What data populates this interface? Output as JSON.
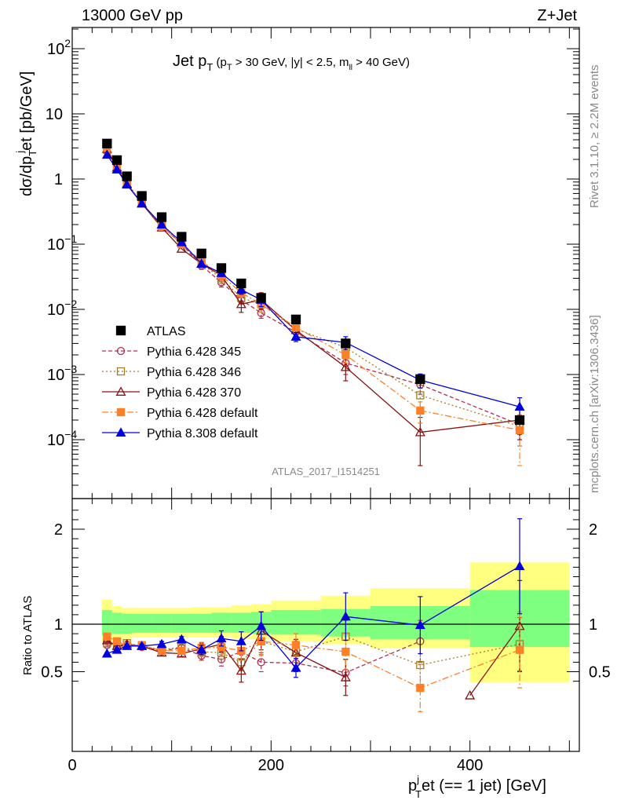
{
  "header": {
    "left": "13000 GeV pp",
    "right": "Z+Jet"
  },
  "side": {
    "rivet": "Rivet 3.1.10, ≥ 2.2M events",
    "mcplots": "mcplots.cern.ch [arXiv:1306.3436]"
  },
  "title_html": {
    "main": "Jet p",
    "sub1": "T",
    "rest_open": " (p",
    "sub2": "T",
    "rest": " > 30 GeV, |y| < 2.5, m",
    "sub3": "ll",
    "rest_close": " > 40 GeV)"
  },
  "watermark": "ATLAS_2017_I1514251",
  "ylabel_top": {
    "a": "dσ/dp",
    "sub": "T",
    "sup": "j",
    "b": "et [pb/GeV]"
  },
  "ylabel_bottom": "Ratio to ATLAS",
  "xlabel": {
    "a": "p",
    "sup": "j",
    "sub": "T",
    "b": "et (== 1 jet) [GeV]"
  },
  "colors": {
    "atlas": "#000000",
    "p345": "#b03050",
    "p346": "#a67c20",
    "p370": "#8b1010",
    "p6def": "#ff7f27",
    "p8def": "#0000dd",
    "band_inner": "#7fff7f",
    "band_outer": "#ffff80"
  },
  "chart_data": [
    {
      "type": "scatter",
      "scale": "log",
      "xlim": [
        0,
        510
      ],
      "ylim": [
        1e-05,
        200
      ],
      "yticks": [
        "10^-4",
        "10^-3",
        "10^-2",
        "10^-1",
        "1",
        "10",
        "10^2"
      ],
      "series": [
        {
          "name": "ATLAS",
          "style": "atlas",
          "x": [
            35,
            45,
            55,
            70,
            90,
            110,
            130,
            150,
            170,
            190,
            225,
            275,
            350,
            450
          ],
          "y": [
            3.5,
            1.95,
            1.1,
            0.55,
            0.26,
            0.13,
            0.072,
            0.043,
            0.025,
            0.015,
            0.007,
            0.003,
            0.00085,
            0.0002
          ]
        },
        {
          "name": "Pythia 6.428 345",
          "style": "p345",
          "x": [
            35,
            45,
            55,
            70,
            90,
            110,
            130,
            150,
            170,
            190,
            225,
            275,
            350,
            450
          ],
          "y": [
            2.7,
            1.45,
            0.85,
            0.42,
            0.19,
            0.1,
            0.047,
            0.026,
            0.014,
            0.0088,
            0.0045,
            0.0015,
            0.0007,
            0.00017
          ],
          "err": [
            0,
            0,
            0,
            0,
            0,
            0,
            0.006,
            0.004,
            0.002,
            0.0015,
            0.0008,
            0.0005,
            0.0002,
            5e-05
          ]
        },
        {
          "name": "Pythia 6.428 346",
          "style": "p346",
          "x": [
            35,
            45,
            55,
            70,
            90,
            110,
            130,
            150,
            170,
            190,
            225,
            275,
            350,
            450
          ],
          "y": [
            2.8,
            1.5,
            0.88,
            0.43,
            0.19,
            0.1,
            0.05,
            0.03,
            0.015,
            0.012,
            0.005,
            0.0026,
            0.00048,
            0.00016
          ],
          "err": [
            0,
            0,
            0,
            0,
            0,
            0,
            0.006,
            0.005,
            0.003,
            0.003,
            0.001,
            0.0006,
            0.0002,
            8e-05
          ]
        },
        {
          "name": "Pythia 6.428 370",
          "style": "p370",
          "x": [
            35,
            45,
            55,
            70,
            90,
            110,
            130,
            150,
            170,
            190,
            225,
            275,
            350,
            450
          ],
          "y": [
            2.9,
            1.5,
            0.85,
            0.42,
            0.18,
            0.085,
            0.05,
            0.033,
            0.012,
            0.014,
            0.0048,
            0.0013,
            0.00013,
            0.0002
          ],
          "err": [
            0,
            0,
            0,
            0,
            0,
            0,
            0.006,
            0.005,
            0.003,
            0.004,
            0.001,
            0.0005,
            9e-05,
            0.0001
          ]
        },
        {
          "name": "Pythia 6.428 default",
          "style": "p6def",
          "x": [
            35,
            45,
            55,
            70,
            90,
            110,
            130,
            150,
            170,
            190,
            225,
            275,
            350,
            450
          ],
          "y": [
            3.0,
            1.6,
            0.85,
            0.43,
            0.19,
            0.1,
            0.055,
            0.033,
            0.018,
            0.012,
            0.0053,
            0.002,
            0.00028,
            0.00014
          ],
          "err": [
            0,
            0,
            0,
            0,
            0,
            0,
            0.006,
            0.005,
            0.003,
            0.003,
            0.001,
            0.0005,
            0.0001,
            0.0001
          ]
        },
        {
          "name": "Pythia 8.308 default",
          "style": "p8def",
          "x": [
            35,
            45,
            55,
            70,
            90,
            110,
            130,
            150,
            170,
            190,
            225,
            275,
            350,
            450
          ],
          "y": [
            2.35,
            1.4,
            0.82,
            0.42,
            0.2,
            0.107,
            0.05,
            0.036,
            0.02,
            0.014,
            0.0038,
            0.0031,
            0.00082,
            0.00032
          ],
          "err": [
            0,
            0,
            0,
            0,
            0,
            0,
            0.004,
            0.004,
            0.003,
            0.003,
            0.0006,
            0.0007,
            0.0002,
            0.00012
          ]
        }
      ]
    },
    {
      "type": "line",
      "xlabel": "p_T^j et (== 1 jet) [GeV]",
      "ylabel": "Ratio to ATLAS",
      "xlim": [
        0,
        510
      ],
      "ylim": [
        0.35,
        2.3
      ],
      "xticks": [
        0,
        200,
        400
      ],
      "yticks": [
        0.5,
        1,
        2
      ],
      "bands": {
        "edges": [
          30,
          40,
          50,
          60,
          80,
          100,
          120,
          140,
          160,
          180,
          200,
          250,
          300,
          400,
          500
        ],
        "inner": [
          [
            0.88,
            1.15
          ],
          [
            0.9,
            1.12
          ],
          [
            0.9,
            1.11
          ],
          [
            0.91,
            1.11
          ],
          [
            0.91,
            1.11
          ],
          [
            0.91,
            1.11
          ],
          [
            0.91,
            1.11
          ],
          [
            0.91,
            1.12
          ],
          [
            0.91,
            1.12
          ],
          [
            0.9,
            1.13
          ],
          [
            0.89,
            1.15
          ],
          [
            0.87,
            1.16
          ],
          [
            0.84,
            1.19
          ],
          [
            0.76,
            1.36
          ]
        ],
        "outer": [
          [
            0.81,
            1.26
          ],
          [
            0.84,
            1.19
          ],
          [
            0.85,
            1.17
          ],
          [
            0.86,
            1.17
          ],
          [
            0.86,
            1.17
          ],
          [
            0.86,
            1.17
          ],
          [
            0.86,
            1.18
          ],
          [
            0.86,
            1.18
          ],
          [
            0.85,
            1.2
          ],
          [
            0.84,
            1.21
          ],
          [
            0.82,
            1.25
          ],
          [
            0.79,
            1.3
          ],
          [
            0.75,
            1.38
          ],
          [
            0.39,
            1.65
          ]
        ]
      },
      "series": [
        {
          "name": "Pythia 6.428 345",
          "style": "p345",
          "x": [
            35,
            45,
            55,
            70,
            90,
            110,
            130,
            150,
            170,
            190,
            225,
            275,
            350,
            450
          ],
          "y": [
            0.78,
            0.76,
            0.78,
            0.76,
            0.72,
            0.75,
            0.67,
            0.63,
            0.71,
            0.6,
            0.59,
            0.49,
            0.82,
            null
          ],
          "err": [
            0.02,
            0.02,
            0.02,
            0.02,
            0.02,
            0.03,
            0.05,
            0.07,
            0.09,
            0.1,
            0.09,
            0.14,
            0.22,
            0
          ]
        },
        {
          "name": "Pythia 6.428 346",
          "style": "p346",
          "x": [
            35,
            45,
            55,
            70,
            90,
            110,
            130,
            150,
            170,
            190,
            225,
            275,
            350,
            450
          ],
          "y": [
            0.8,
            0.77,
            0.8,
            0.77,
            0.73,
            0.76,
            0.71,
            0.7,
            0.6,
            0.82,
            0.71,
            0.87,
            0.57,
            0.79
          ],
          "err": [
            0.02,
            0.02,
            0.02,
            0.02,
            0.02,
            0.03,
            0.05,
            0.07,
            0.09,
            0.14,
            0.11,
            0.17,
            0.22,
            0.28
          ]
        },
        {
          "name": "Pythia 6.428 370",
          "style": "p370",
          "x": [
            35,
            45,
            55,
            70,
            90,
            110,
            130,
            150,
            170,
            190,
            225,
            275,
            350,
            400,
            450
          ],
          "y": [
            0.83,
            0.77,
            0.79,
            0.77,
            0.7,
            0.69,
            0.74,
            0.79,
            0.51,
            0.93,
            0.7,
            0.44,
            null,
            0.25,
            0.98
          ],
          "err": [
            0.02,
            0.02,
            0.02,
            0.02,
            0.03,
            0.03,
            0.06,
            0.08,
            0.12,
            0.2,
            0.14,
            0.19,
            0,
            0,
            0.48
          ]
        },
        {
          "name": "Pythia 6.428 default",
          "style": "p6def",
          "x": [
            35,
            45,
            55,
            70,
            90,
            110,
            130,
            150,
            170,
            190,
            225,
            275,
            350,
            450
          ],
          "y": [
            0.87,
            0.82,
            0.77,
            0.78,
            0.72,
            0.72,
            0.75,
            0.76,
            0.72,
            0.82,
            0.78,
            0.71,
            0.33,
            0.73
          ],
          "err": [
            0.02,
            0.02,
            0.02,
            0.02,
            0.03,
            0.03,
            0.06,
            0.08,
            0.1,
            0.15,
            0.12,
            0.19,
            0.25,
            0.4
          ]
        },
        {
          "name": "Pythia 8.308 default",
          "style": "p8def",
          "x": [
            35,
            45,
            55,
            70,
            90,
            110,
            130,
            150,
            170,
            190,
            225,
            275,
            350,
            450
          ],
          "y": [
            0.69,
            0.73,
            0.77,
            0.77,
            0.79,
            0.84,
            0.73,
            0.85,
            0.82,
            0.98,
            0.54,
            1.08,
            0.99,
            1.61
          ],
          "err": [
            0.01,
            0.02,
            0.02,
            0.02,
            0.03,
            0.03,
            0.05,
            0.08,
            0.1,
            0.15,
            0.1,
            0.25,
            0.3,
            0.5
          ]
        }
      ]
    }
  ]
}
